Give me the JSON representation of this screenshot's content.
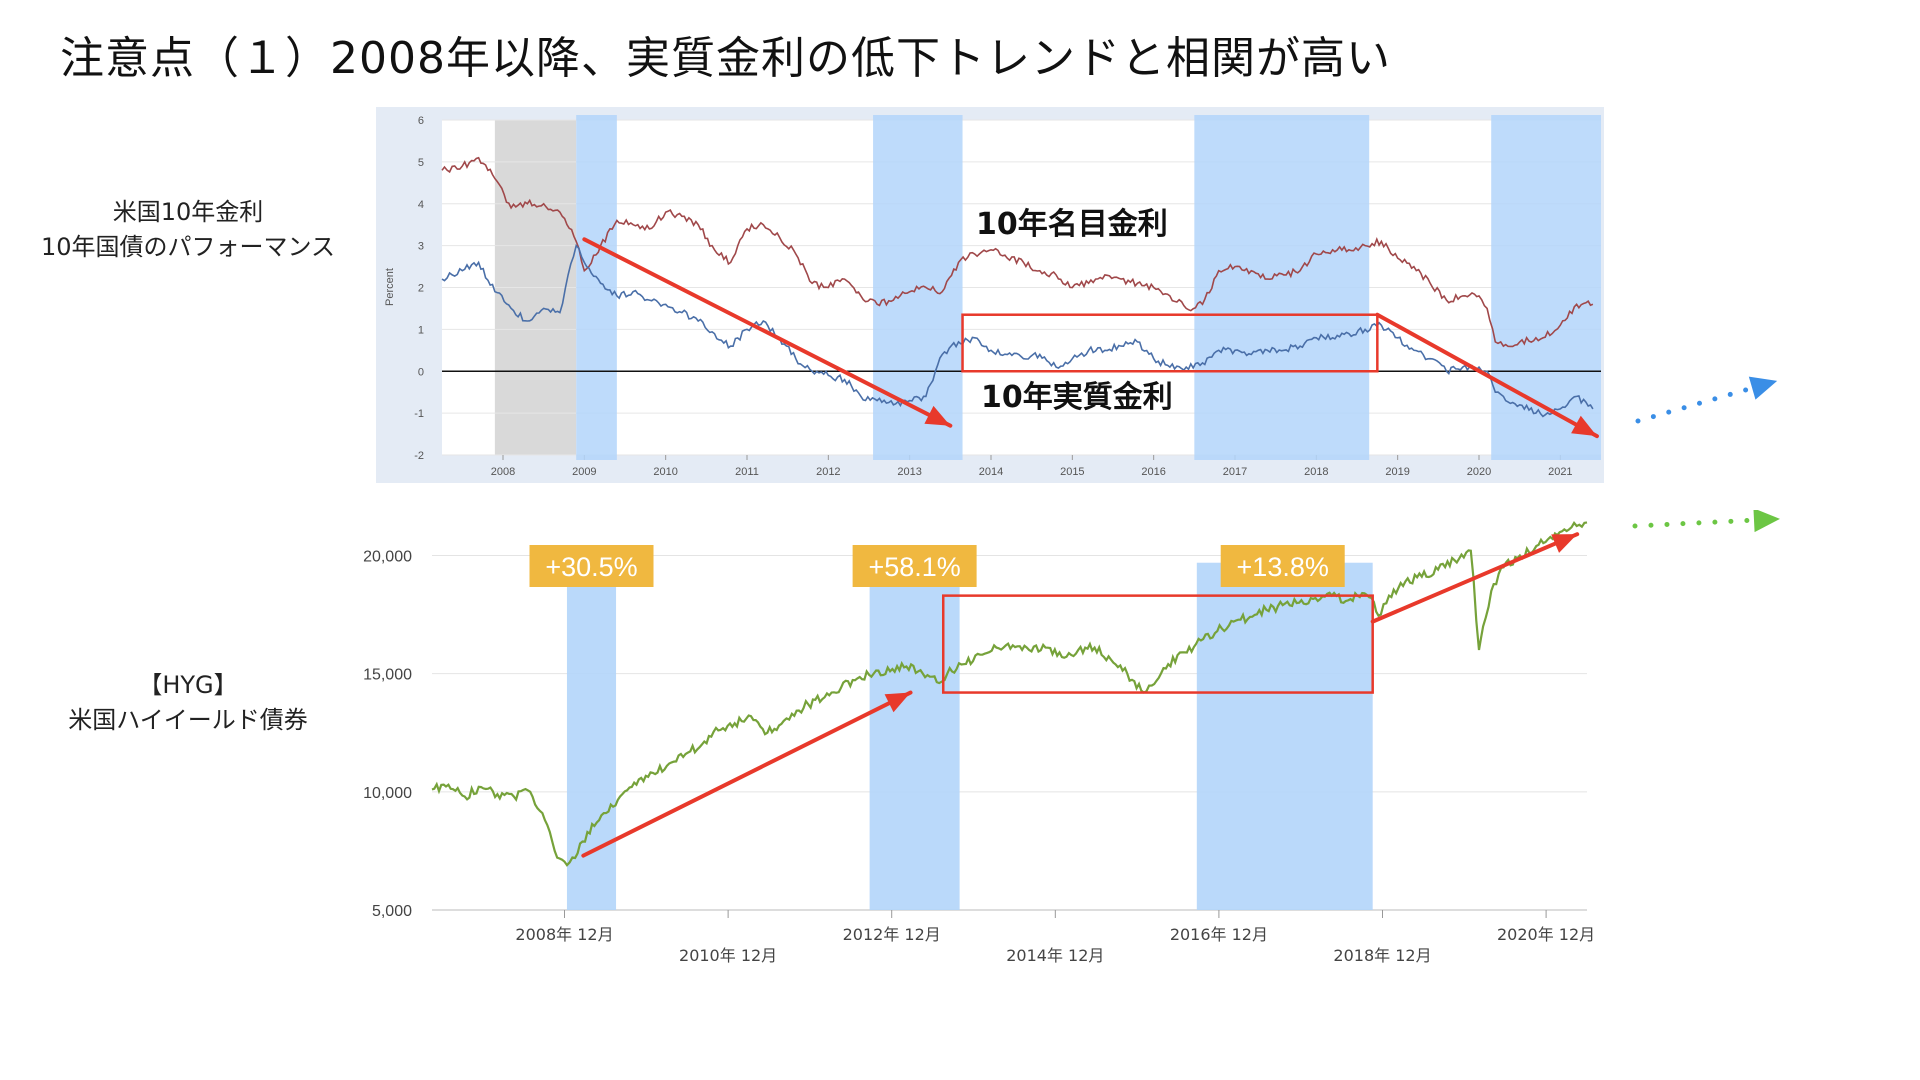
{
  "slide_title": "注意点（１）2008年以降、実質金利の低下トレンドと相関が高い",
  "top_label": {
    "line1": "米国10年金利",
    "line2": "10年国債のパフォーマンス"
  },
  "bottom_label": {
    "line1": "【HYG】",
    "line2": "米国ハイイールド債券"
  },
  "colors": {
    "nominal": "#a0484a",
    "real": "#4a6fa8",
    "hyg": "#76a23a",
    "highlight": "#b3d5fa",
    "recession": "#d9d9d9",
    "arrow": "#e8392b",
    "badge": "#f0b840",
    "forecast_blue": "#3a8ee6",
    "forecast_green": "#6cc644"
  },
  "chart_data": [
    {
      "type": "line",
      "ylabel": "Percent",
      "ylim": [
        -2,
        6
      ],
      "yticks": [
        "6",
        "5",
        "4",
        "3",
        "2",
        "1",
        "0",
        "-1",
        "-2"
      ],
      "xticks": [
        "2008",
        "2009",
        "2010",
        "2011",
        "2012",
        "2013",
        "2014",
        "2015",
        "2016",
        "2017",
        "2018",
        "2019",
        "2020",
        "2021"
      ],
      "xlim": [
        2007.25,
        2021.5
      ],
      "grid": true,
      "annotations": {
        "nominal": "10年名目金利",
        "real": "10年実質金利"
      },
      "shaded_grey": [
        [
          2007.9,
          2008.9
        ]
      ],
      "shaded_blue": [
        [
          2008.9,
          2009.4
        ],
        [
          2012.55,
          2013.65
        ],
        [
          2016.5,
          2018.65
        ],
        [
          2020.15,
          2021.5
        ]
      ],
      "series": [
        {
          "key": "nominal",
          "x": [
            2007.25,
            2007.5,
            2007.7,
            2007.9,
            2008.1,
            2008.3,
            2008.5,
            2008.7,
            2008.9,
            2009.0,
            2009.2,
            2009.4,
            2009.6,
            2009.8,
            2010.0,
            2010.2,
            2010.4,
            2010.6,
            2010.8,
            2011.0,
            2011.2,
            2011.4,
            2011.6,
            2011.8,
            2012.0,
            2012.2,
            2012.4,
            2012.6,
            2012.8,
            2013.0,
            2013.2,
            2013.4,
            2013.6,
            2013.8,
            2014.0,
            2014.2,
            2014.4,
            2014.6,
            2014.8,
            2015.0,
            2015.2,
            2015.4,
            2015.6,
            2015.8,
            2016.0,
            2016.2,
            2016.4,
            2016.6,
            2016.8,
            2017.0,
            2017.2,
            2017.4,
            2017.6,
            2017.8,
            2018.0,
            2018.2,
            2018.4,
            2018.6,
            2018.8,
            2019.0,
            2019.2,
            2019.4,
            2019.6,
            2019.8,
            2020.0,
            2020.1,
            2020.2,
            2020.3,
            2020.5,
            2020.7,
            2020.9,
            2021.0,
            2021.2,
            2021.4
          ],
          "y": [
            4.8,
            4.9,
            5.1,
            4.6,
            3.9,
            4.0,
            4.0,
            3.8,
            3.1,
            2.4,
            3.0,
            3.6,
            3.5,
            3.4,
            3.8,
            3.7,
            3.5,
            2.9,
            2.6,
            3.4,
            3.5,
            3.2,
            2.8,
            2.1,
            2.0,
            2.2,
            1.8,
            1.6,
            1.7,
            1.9,
            2.0,
            1.9,
            2.6,
            2.8,
            2.9,
            2.7,
            2.6,
            2.4,
            2.3,
            2.0,
            2.1,
            2.3,
            2.2,
            2.1,
            2.0,
            1.8,
            1.5,
            1.6,
            2.4,
            2.5,
            2.4,
            2.2,
            2.3,
            2.4,
            2.8,
            2.9,
            2.9,
            3.0,
            3.1,
            2.7,
            2.5,
            2.1,
            1.7,
            1.8,
            1.8,
            1.5,
            0.7,
            0.6,
            0.7,
            0.8,
            0.9,
            1.1,
            1.6,
            1.6
          ]
        },
        {
          "key": "real",
          "x": [
            2007.25,
            2007.5,
            2007.7,
            2007.9,
            2008.1,
            2008.3,
            2008.5,
            2008.7,
            2008.8,
            2008.9,
            2009.0,
            2009.2,
            2009.4,
            2009.6,
            2009.8,
            2010.0,
            2010.2,
            2010.4,
            2010.6,
            2010.8,
            2011.0,
            2011.2,
            2011.4,
            2011.6,
            2011.8,
            2012.0,
            2012.2,
            2012.4,
            2012.6,
            2012.8,
            2013.0,
            2013.2,
            2013.4,
            2013.6,
            2013.8,
            2014.0,
            2014.2,
            2014.4,
            2014.6,
            2014.8,
            2015.0,
            2015.2,
            2015.4,
            2015.6,
            2015.8,
            2016.0,
            2016.2,
            2016.4,
            2016.6,
            2016.8,
            2017.0,
            2017.2,
            2017.4,
            2017.6,
            2017.8,
            2018.0,
            2018.2,
            2018.4,
            2018.6,
            2018.8,
            2019.0,
            2019.2,
            2019.4,
            2019.6,
            2019.8,
            2020.0,
            2020.1,
            2020.2,
            2020.3,
            2020.5,
            2020.7,
            2020.9,
            2021.0,
            2021.2,
            2021.4
          ],
          "y": [
            2.2,
            2.4,
            2.6,
            1.9,
            1.5,
            1.2,
            1.5,
            1.4,
            2.3,
            3.0,
            2.6,
            2.1,
            1.8,
            1.9,
            1.7,
            1.6,
            1.4,
            1.2,
            0.9,
            0.6,
            1.0,
            1.2,
            0.8,
            0.3,
            0.0,
            -0.1,
            -0.2,
            -0.6,
            -0.7,
            -0.8,
            -0.7,
            -0.6,
            0.4,
            0.7,
            0.8,
            0.5,
            0.4,
            0.3,
            0.4,
            0.1,
            0.3,
            0.5,
            0.5,
            0.6,
            0.7,
            0.3,
            0.1,
            0.1,
            0.2,
            0.5,
            0.5,
            0.4,
            0.5,
            0.5,
            0.6,
            0.8,
            0.8,
            0.9,
            1.0,
            1.1,
            0.8,
            0.5,
            0.3,
            0.0,
            0.1,
            0.1,
            0.0,
            -0.5,
            -0.6,
            -0.8,
            -1.0,
            -1.0,
            -0.9,
            -0.6,
            -0.9
          ]
        },
        {
          "key": "zero_line",
          "x": [
            2007.25,
            2021.5
          ],
          "y": [
            0,
            0
          ]
        }
      ]
    },
    {
      "type": "line",
      "ylim": [
        5000,
        21500
      ],
      "yticks": [
        "5,000",
        "10,000",
        "15,000",
        "20,000"
      ],
      "ytick_values": [
        5000,
        10000,
        15000,
        20000
      ],
      "xticks_upper": [
        "2008年 12月",
        "2012年 12月",
        "2016年 12月",
        "2020年 12月"
      ],
      "xticks_upper_values": [
        2008.92,
        2012.92,
        2016.92,
        2020.92
      ],
      "xticks_lower": [
        "2010年 12月",
        "2014年 12月",
        "2018年 12月"
      ],
      "xticks_lower_values": [
        2010.92,
        2014.92,
        2018.92
      ],
      "xlim": [
        2007.3,
        2021.42
      ],
      "grid": true,
      "badges": [
        "+30.5%",
        "+58.1%",
        "+13.8%"
      ],
      "highlights": [
        [
          2008.95,
          2009.55
        ],
        [
          2012.65,
          2013.75
        ],
        [
          2016.65,
          2018.8
        ]
      ],
      "series": [
        {
          "key": "hyg",
          "x": [
            2007.3,
            2007.5,
            2007.7,
            2007.9,
            2008.1,
            2008.3,
            2008.5,
            2008.65,
            2008.8,
            2008.95,
            2009.05,
            2009.2,
            2009.4,
            2009.6,
            2009.8,
            2010.0,
            2010.2,
            2010.4,
            2010.6,
            2010.8,
            2011.0,
            2011.2,
            2011.4,
            2011.6,
            2011.7,
            2011.9,
            2012.1,
            2012.3,
            2012.5,
            2012.7,
            2012.9,
            2013.1,
            2013.3,
            2013.5,
            2013.6,
            2013.8,
            2014.0,
            2014.2,
            2014.4,
            2014.6,
            2014.8,
            2015.0,
            2015.2,
            2015.4,
            2015.6,
            2015.8,
            2016.0,
            2016.1,
            2016.3,
            2016.5,
            2016.7,
            2016.9,
            2017.1,
            2017.3,
            2017.5,
            2017.7,
            2017.9,
            2018.1,
            2018.3,
            2018.5,
            2018.7,
            2018.9,
            2019.0,
            2019.2,
            2019.4,
            2019.6,
            2019.8,
            2020.0,
            2020.1,
            2020.15,
            2020.25,
            2020.4,
            2020.6,
            2020.8,
            2021.0,
            2021.2,
            2021.42
          ],
          "y": [
            10100,
            10300,
            9800,
            10200,
            9900,
            9800,
            10000,
            9100,
            7500,
            6900,
            7200,
            8300,
            9100,
            9800,
            10300,
            10800,
            11200,
            11600,
            12000,
            12600,
            12900,
            13200,
            12500,
            13000,
            13300,
            13700,
            14000,
            14400,
            14800,
            15000,
            15100,
            15300,
            15000,
            14600,
            15000,
            15400,
            15800,
            16100,
            16200,
            16000,
            16100,
            15700,
            16000,
            16100,
            15600,
            15000,
            14200,
            14500,
            15400,
            15900,
            16400,
            16800,
            17200,
            17400,
            17700,
            17900,
            18000,
            18200,
            18300,
            18100,
            18400,
            17500,
            18300,
            18900,
            19100,
            19400,
            19800,
            20200,
            16000,
            17000,
            18500,
            19500,
            20000,
            20400,
            20700,
            21100,
            21400
          ]
        }
      ]
    }
  ]
}
